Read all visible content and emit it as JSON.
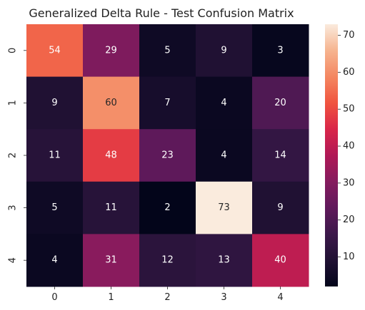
{
  "chart_data": {
    "type": "heatmap",
    "title": "Generalized Delta Rule - Test Confusion Matrix",
    "xlabel": "",
    "ylabel": "",
    "x_categories": [
      "0",
      "1",
      "2",
      "3",
      "4"
    ],
    "y_categories": [
      "0",
      "1",
      "2",
      "3",
      "4"
    ],
    "values": [
      [
        54,
        29,
        5,
        9,
        3
      ],
      [
        9,
        60,
        7,
        4,
        20
      ],
      [
        11,
        48,
        23,
        4,
        14
      ],
      [
        5,
        11,
        2,
        73,
        9
      ],
      [
        4,
        31,
        12,
        13,
        40
      ]
    ],
    "colorbar": {
      "range": [
        2,
        73
      ],
      "ticks": [
        "10",
        "20",
        "30",
        "40",
        "50",
        "60",
        "70"
      ],
      "tick_values": [
        10,
        20,
        30,
        40,
        50,
        60,
        70
      ],
      "colormap": "rocket"
    },
    "grid": false
  }
}
